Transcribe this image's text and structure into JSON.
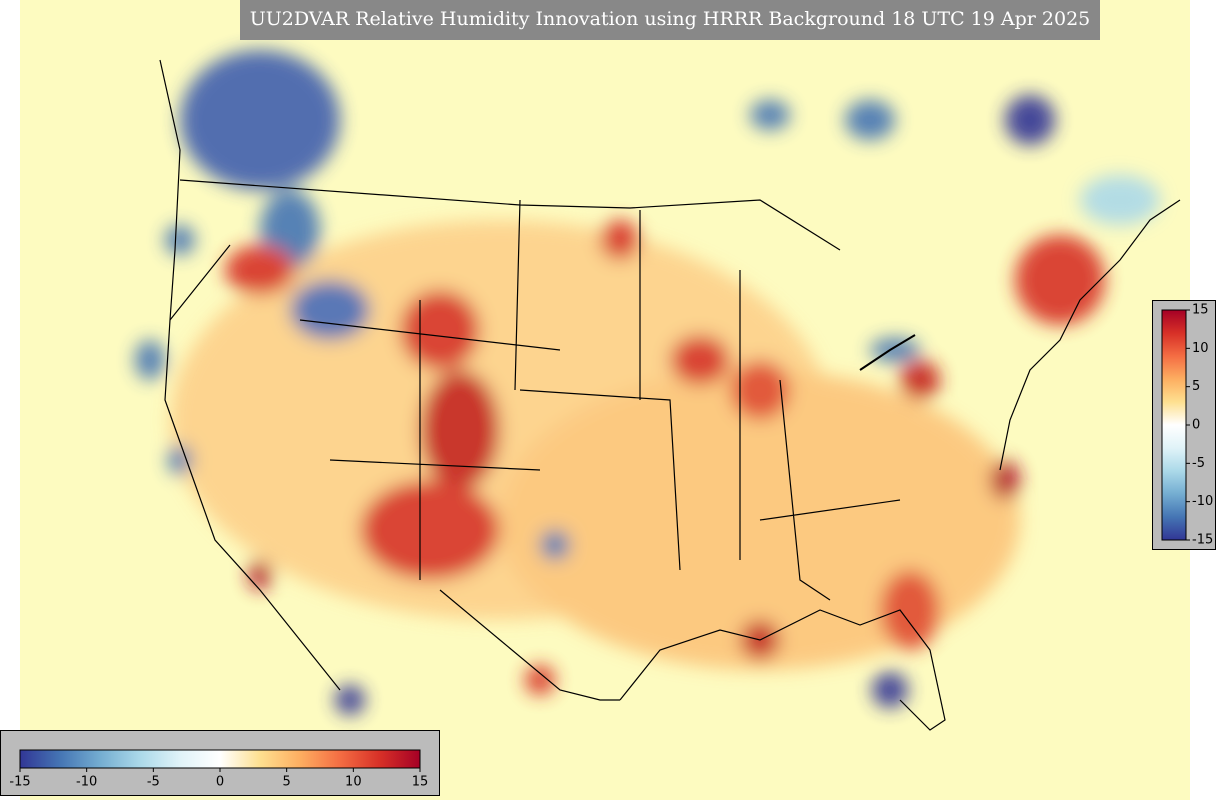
{
  "title": "UU2DVAR Relative Humidity Innovation using HRRR Background 18 UTC 19 Apr 2025",
  "colorbar": {
    "vmin": -15,
    "vmax": 15,
    "ticks": [
      -15,
      -10,
      -5,
      0,
      5,
      10,
      15
    ],
    "colors": [
      "#313695",
      "#4575b4",
      "#74add1",
      "#abd9e9",
      "#e0f3f8",
      "#ffffff",
      "#fee090",
      "#fdae61",
      "#f46d43",
      "#d73027",
      "#a50026"
    ]
  }
}
